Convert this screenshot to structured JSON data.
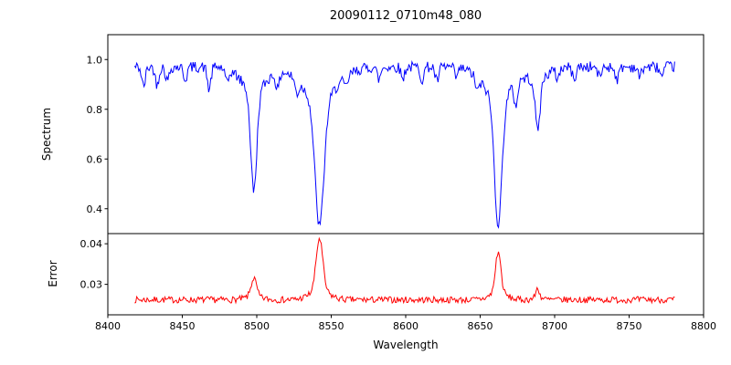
{
  "figure": {
    "background": "#ffffff",
    "frame_color": "#000000"
  },
  "chart_data": [
    {
      "type": "line",
      "panel": "spectrum",
      "title": "20090112_0710m48_080",
      "ylabel": "Spectrum",
      "xlabel": "",
      "xlim": [
        8400,
        8800
      ],
      "ylim": [
        0.3,
        1.1
      ],
      "yticks": [
        0.4,
        0.6,
        0.8,
        1.0
      ],
      "ytick_labels": [
        "0.4",
        "0.6",
        "0.8",
        "1.0"
      ],
      "line_color": "#0000ff",
      "x_data_range": [
        8418,
        8781
      ],
      "x_step": 0.7,
      "continuum": 0.97,
      "noise_amplitude": 0.022,
      "absorption_lines": [
        {
          "center": 8498.0,
          "depth_to": 0.47,
          "width": 2.0
        },
        {
          "center": 8542.1,
          "depth_to": 0.33,
          "width": 3.0
        },
        {
          "center": 8662.1,
          "depth_to": 0.34,
          "width": 2.5
        },
        {
          "center": 8688.6,
          "depth_to": 0.72,
          "width": 1.6
        }
      ],
      "minor_line_width": 1.2,
      "minor_lines": [
        {
          "center": 8424,
          "depth_to": 0.89
        },
        {
          "center": 8433,
          "depth_to": 0.9
        },
        {
          "center": 8440,
          "depth_to": 0.915
        },
        {
          "center": 8452,
          "depth_to": 0.92
        },
        {
          "center": 8468,
          "depth_to": 0.88
        },
        {
          "center": 8480,
          "depth_to": 0.91
        },
        {
          "center": 8514,
          "depth_to": 0.9
        },
        {
          "center": 8527,
          "depth_to": 0.92
        },
        {
          "center": 8560,
          "depth_to": 0.93
        },
        {
          "center": 8582,
          "depth_to": 0.92
        },
        {
          "center": 8598,
          "depth_to": 0.925
        },
        {
          "center": 8611,
          "depth_to": 0.92
        },
        {
          "center": 8621,
          "depth_to": 0.91
        },
        {
          "center": 8634,
          "depth_to": 0.93
        },
        {
          "center": 8648,
          "depth_to": 0.92
        },
        {
          "center": 8674,
          "depth_to": 0.88
        },
        {
          "center": 8702,
          "depth_to": 0.93
        },
        {
          "center": 8713,
          "depth_to": 0.92
        },
        {
          "center": 8730,
          "depth_to": 0.93
        },
        {
          "center": 8742,
          "depth_to": 0.92
        },
        {
          "center": 8757,
          "depth_to": 0.93
        },
        {
          "center": 8772,
          "depth_to": 0.93
        }
      ]
    },
    {
      "type": "line",
      "panel": "error",
      "ylabel": "Error",
      "xlabel": "Wavelength",
      "xlim": [
        8400,
        8800
      ],
      "ylim": [
        0.0225,
        0.0425
      ],
      "yticks": [
        0.03,
        0.04
      ],
      "ytick_labels": [
        "0.03",
        "0.04"
      ],
      "xticks": [
        8400,
        8450,
        8500,
        8550,
        8600,
        8650,
        8700,
        8750,
        8800
      ],
      "xtick_labels": [
        "8400",
        "8450",
        "8500",
        "8550",
        "8600",
        "8650",
        "8700",
        "8750",
        "8800"
      ],
      "line_color": "#ff0000",
      "x_data_range": [
        8418,
        8781
      ],
      "x_step": 0.7,
      "baseline": 0.0262,
      "noise_amplitude": 0.0008,
      "peaks": [
        {
          "center": 8498.0,
          "height_to": 0.0315,
          "width": 1.8
        },
        {
          "center": 8542.1,
          "height_to": 0.0413,
          "width": 2.2
        },
        {
          "center": 8662.1,
          "height_to": 0.038,
          "width": 1.8
        },
        {
          "center": 8688.6,
          "height_to": 0.029,
          "width": 1.2
        }
      ]
    }
  ]
}
